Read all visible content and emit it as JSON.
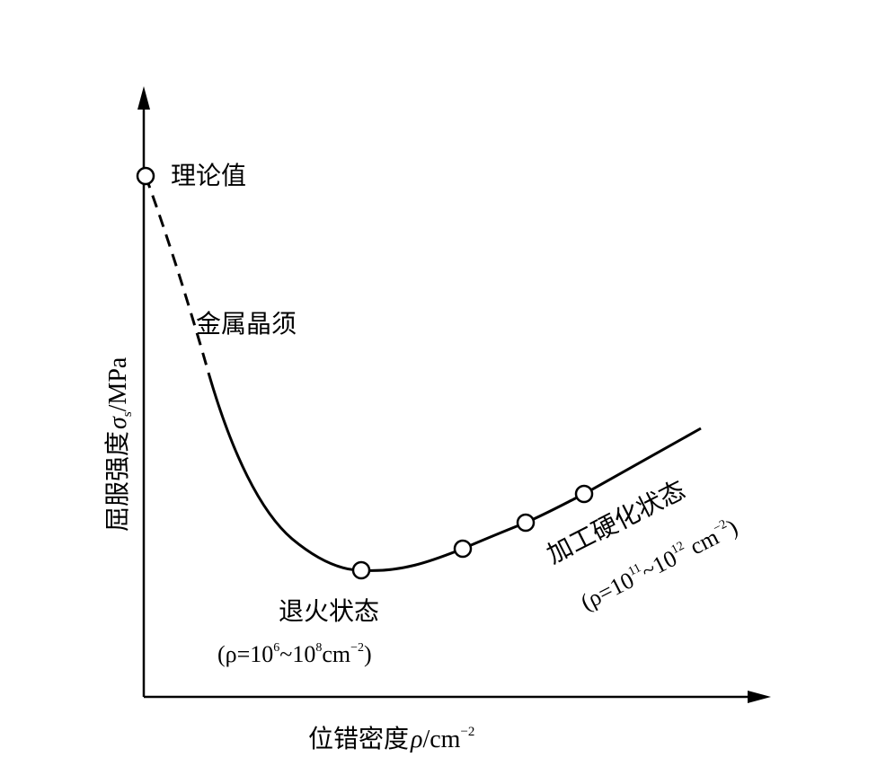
{
  "chart_data": {
    "type": "line",
    "title": "",
    "xlabel": "位错密度ρ/cm⁻²",
    "ylabel": "屈服强度σs/MPa",
    "x_ticks": [],
    "y_ticks": [],
    "grid": false,
    "curve": {
      "dashed_segment": "理论值 → 金属晶须",
      "solid_segment": "金属晶须 → 退火状态 → 加工硬化状态"
    },
    "annotations": {
      "theory": "理论值",
      "whisker": "金属晶须",
      "annealed": "退火状态",
      "annealed_range_prefix": "(ρ=10",
      "annealed_exp1": "6",
      "annealed_mid": "~10",
      "annealed_exp2": "8",
      "annealed_unit": "cm",
      "annealed_exp3": "−2",
      "annealed_close": ")",
      "work_hardened": "加工硬化状态",
      "work_range_prefix": "(ρ=10",
      "work_exp1": "11",
      "work_mid": "~10",
      "work_exp2": "12",
      "work_unit": " cm",
      "work_exp3": "−2",
      "work_close": ")"
    },
    "axis_labels": {
      "y_main": "屈服强度",
      "y_sym": "σ",
      "y_sub": "s",
      "y_unit": "/MPa",
      "x_main": "位错密度",
      "x_sym": "ρ",
      "x_unit": "/cm",
      "x_exp": "−2"
    }
  }
}
